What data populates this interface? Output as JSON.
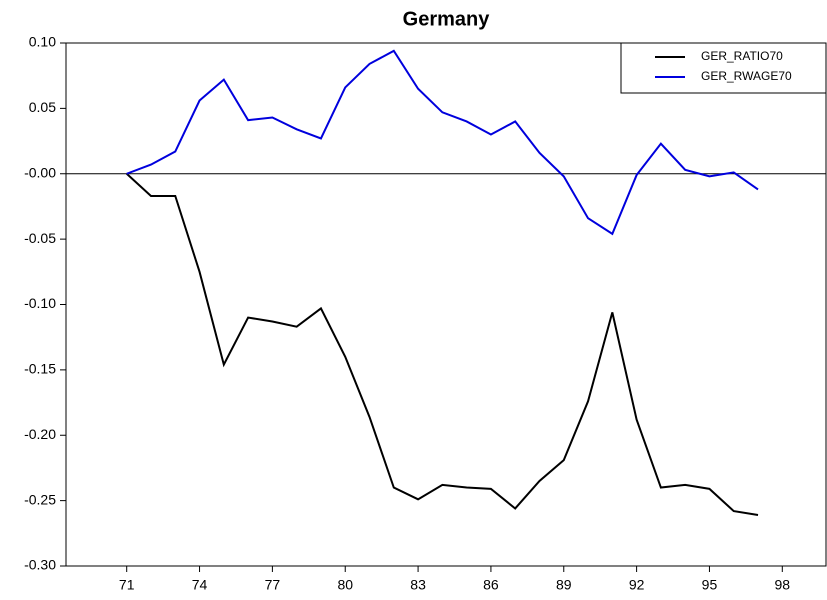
{
  "chart_data": {
    "type": "line",
    "title": "Germany",
    "x": [
      71,
      72,
      73,
      74,
      75,
      76,
      77,
      78,
      79,
      80,
      81,
      82,
      83,
      84,
      85,
      86,
      87,
      88,
      89,
      90,
      91,
      92,
      93,
      94,
      95,
      96,
      97
    ],
    "series": [
      {
        "name": "GER_RATIO70",
        "color": "#000000",
        "values": [
          0.0,
          -0.017,
          -0.017,
          -0.075,
          -0.146,
          -0.11,
          -0.113,
          -0.117,
          -0.103,
          -0.14,
          -0.186,
          -0.24,
          -0.249,
          -0.238,
          -0.24,
          -0.241,
          -0.256,
          -0.235,
          -0.219,
          -0.174,
          -0.106,
          -0.188,
          -0.24,
          -0.238,
          -0.241,
          -0.258,
          -0.261
        ]
      },
      {
        "name": "GER_RWAGE70",
        "color": "#0000dd",
        "values": [
          0.0,
          0.007,
          0.017,
          0.056,
          0.072,
          0.041,
          0.043,
          0.034,
          0.027,
          0.066,
          0.084,
          0.094,
          0.065,
          0.047,
          0.04,
          0.03,
          0.04,
          0.016,
          -0.002,
          -0.034,
          -0.046,
          -0.001,
          0.023,
          0.003,
          -0.002,
          0.001,
          -0.012
        ]
      }
    ],
    "xlim": [
      68.5,
      99.8
    ],
    "xticks": [
      71,
      74,
      77,
      80,
      83,
      86,
      89,
      92,
      95,
      98
    ],
    "ylim": [
      -0.3,
      0.1
    ],
    "yticks": [
      {
        "value": 0.1,
        "label": "0.10"
      },
      {
        "value": 0.05,
        "label": "0.05"
      },
      {
        "value": 0,
        "label": "-0.00"
      },
      {
        "value": -0.05,
        "label": "-0.05"
      },
      {
        "value": -0.1,
        "label": "-0.10"
      },
      {
        "value": -0.15,
        "label": "-0.15"
      },
      {
        "value": -0.2,
        "label": "-0.20"
      },
      {
        "value": -0.25,
        "label": "-0.25"
      },
      {
        "value": -0.3,
        "label": "-0.30"
      }
    ],
    "legend": "top-right"
  }
}
